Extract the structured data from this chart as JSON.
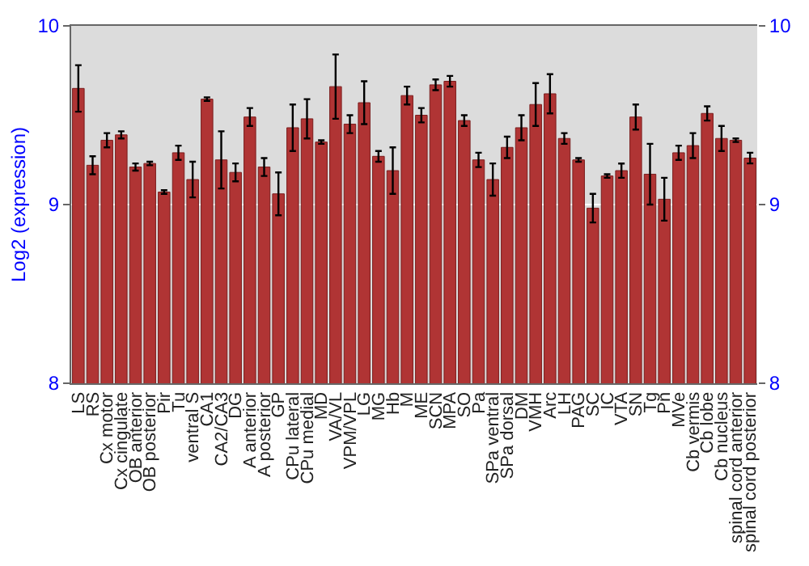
{
  "chart_data": {
    "type": "bar",
    "ylabel": "Log2 (expression)",
    "categories": [
      "LS",
      "RS",
      "Cx motor",
      "Cx cingulate",
      "OB anterior",
      "OB posterior",
      "Pir",
      "Tu",
      "ventral S",
      "CA1",
      "CA2/CA3",
      "DG",
      "A anterior",
      "A posterior",
      "GP",
      "CPu lateral",
      "CPu medial",
      "MD",
      "VA/VL",
      "VPM/VPL",
      "LG",
      "MG",
      "Hb",
      "M",
      "ME",
      "SCN",
      "MPA",
      "SO",
      "Pa",
      "SPa ventral",
      "SPa dorsal",
      "DM",
      "VMH",
      "Arc",
      "LH",
      "PAG",
      "SC",
      "IC",
      "VTA",
      "SN",
      "Tg",
      "Pn",
      "MVe",
      "Cb vermis",
      "Cb lobe",
      "Cb nucleus",
      "spinal cord anterior",
      "spinal cord posterior"
    ],
    "values": [
      9.65,
      9.22,
      9.36,
      9.39,
      9.21,
      9.23,
      9.07,
      9.29,
      9.14,
      9.59,
      9.25,
      9.18,
      9.49,
      9.21,
      9.06,
      9.43,
      9.48,
      9.35,
      9.66,
      9.45,
      9.57,
      9.27,
      9.19,
      9.61,
      9.5,
      9.67,
      9.69,
      9.47,
      9.25,
      9.14,
      9.32,
      9.43,
      9.56,
      9.62,
      9.37,
      9.25,
      8.98,
      9.16,
      9.19,
      9.49,
      9.17,
      9.03,
      9.29,
      9.33,
      9.51,
      9.37,
      9.36,
      9.26
    ],
    "errors": [
      0.13,
      0.05,
      0.04,
      0.02,
      0.02,
      0.01,
      0.01,
      0.04,
      0.1,
      0.01,
      0.16,
      0.05,
      0.05,
      0.05,
      0.12,
      0.13,
      0.11,
      0.01,
      0.18,
      0.05,
      0.12,
      0.03,
      0.13,
      0.05,
      0.04,
      0.03,
      0.03,
      0.03,
      0.04,
      0.09,
      0.06,
      0.07,
      0.12,
      0.11,
      0.03,
      0.01,
      0.08,
      0.01,
      0.04,
      0.07,
      0.17,
      0.12,
      0.04,
      0.07,
      0.04,
      0.07,
      0.01,
      0.03
    ],
    "color": "#b03434",
    "ylim": [
      8,
      10
    ],
    "yticks": [
      8,
      9,
      10
    ],
    "y2lim": [
      8,
      10
    ],
    "y2ticks": [
      8,
      9,
      10
    ],
    "grid": "y",
    "legend": false
  }
}
